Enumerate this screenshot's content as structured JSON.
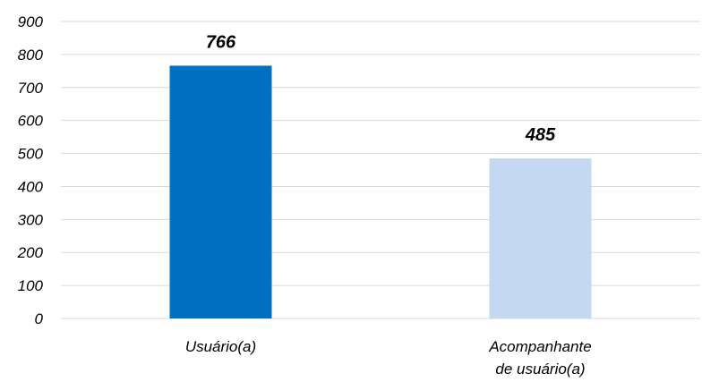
{
  "chart_data": {
    "type": "bar",
    "categories": [
      [
        "Usuário(a)"
      ],
      [
        "Acompanhante",
        "de usuário(a)"
      ]
    ],
    "values": [
      766,
      485
    ],
    "data_labels": [
      "766",
      "485"
    ],
    "colors": [
      "#0070c0",
      "#c5d8f1"
    ],
    "ylim": [
      0,
      900
    ],
    "y_ticks": [
      0,
      100,
      200,
      300,
      400,
      500,
      600,
      700,
      800,
      900
    ],
    "grid": true,
    "legend": "none"
  }
}
